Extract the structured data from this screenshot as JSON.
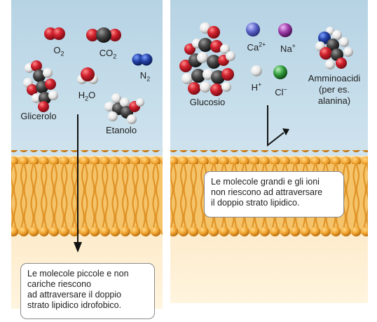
{
  "left_panel": {
    "molecules": {
      "o2": {
        "formula": "O",
        "sub": "2"
      },
      "co2": {
        "formula": "CO",
        "sub": "2"
      },
      "n2": {
        "formula": "N",
        "sub": "2"
      },
      "water": {
        "formula_a": "H",
        "sub": "2",
        "formula_b": "O"
      },
      "glycerol": "Glicerolo",
      "ethanol": "Etanolo"
    },
    "callout": [
      "Le molecole piccole e non",
      "cariche riescono",
      "ad attraversare il doppio",
      "strato lipidico idrofobico."
    ]
  },
  "right_panel": {
    "molecules": {
      "glucose": "Glucosio",
      "calcium": {
        "symbol": "Ca",
        "charge": "2+"
      },
      "sodium": {
        "symbol": "Na",
        "charge": "+"
      },
      "hydrogen": {
        "symbol": "H",
        "charge": "+"
      },
      "chloride": {
        "symbol": "Cl",
        "charge": "−"
      },
      "amino_acids": [
        "Amminoacidi",
        "(per es.",
        "alanina)"
      ]
    },
    "callout": [
      "Le molecole grandi e gli ioni",
      "non riescono ad attraversare",
      "il doppio strato lipidico."
    ]
  },
  "colors": {
    "top_background": "#c0d9e7",
    "bottom_background": "#fde9c4",
    "lipid_head": "#f2a530",
    "lipid_tail": "#e59a2c",
    "oxygen": "#c81e2c",
    "carbon": "#3c3c3c",
    "nitrogen": "#1f3f9c",
    "hydrogen_atom": "#f2f2f2",
    "calcium_ion": "#5b63c9",
    "sodium_ion": "#9a3aa6",
    "chloride_ion": "#2f9a3a"
  }
}
